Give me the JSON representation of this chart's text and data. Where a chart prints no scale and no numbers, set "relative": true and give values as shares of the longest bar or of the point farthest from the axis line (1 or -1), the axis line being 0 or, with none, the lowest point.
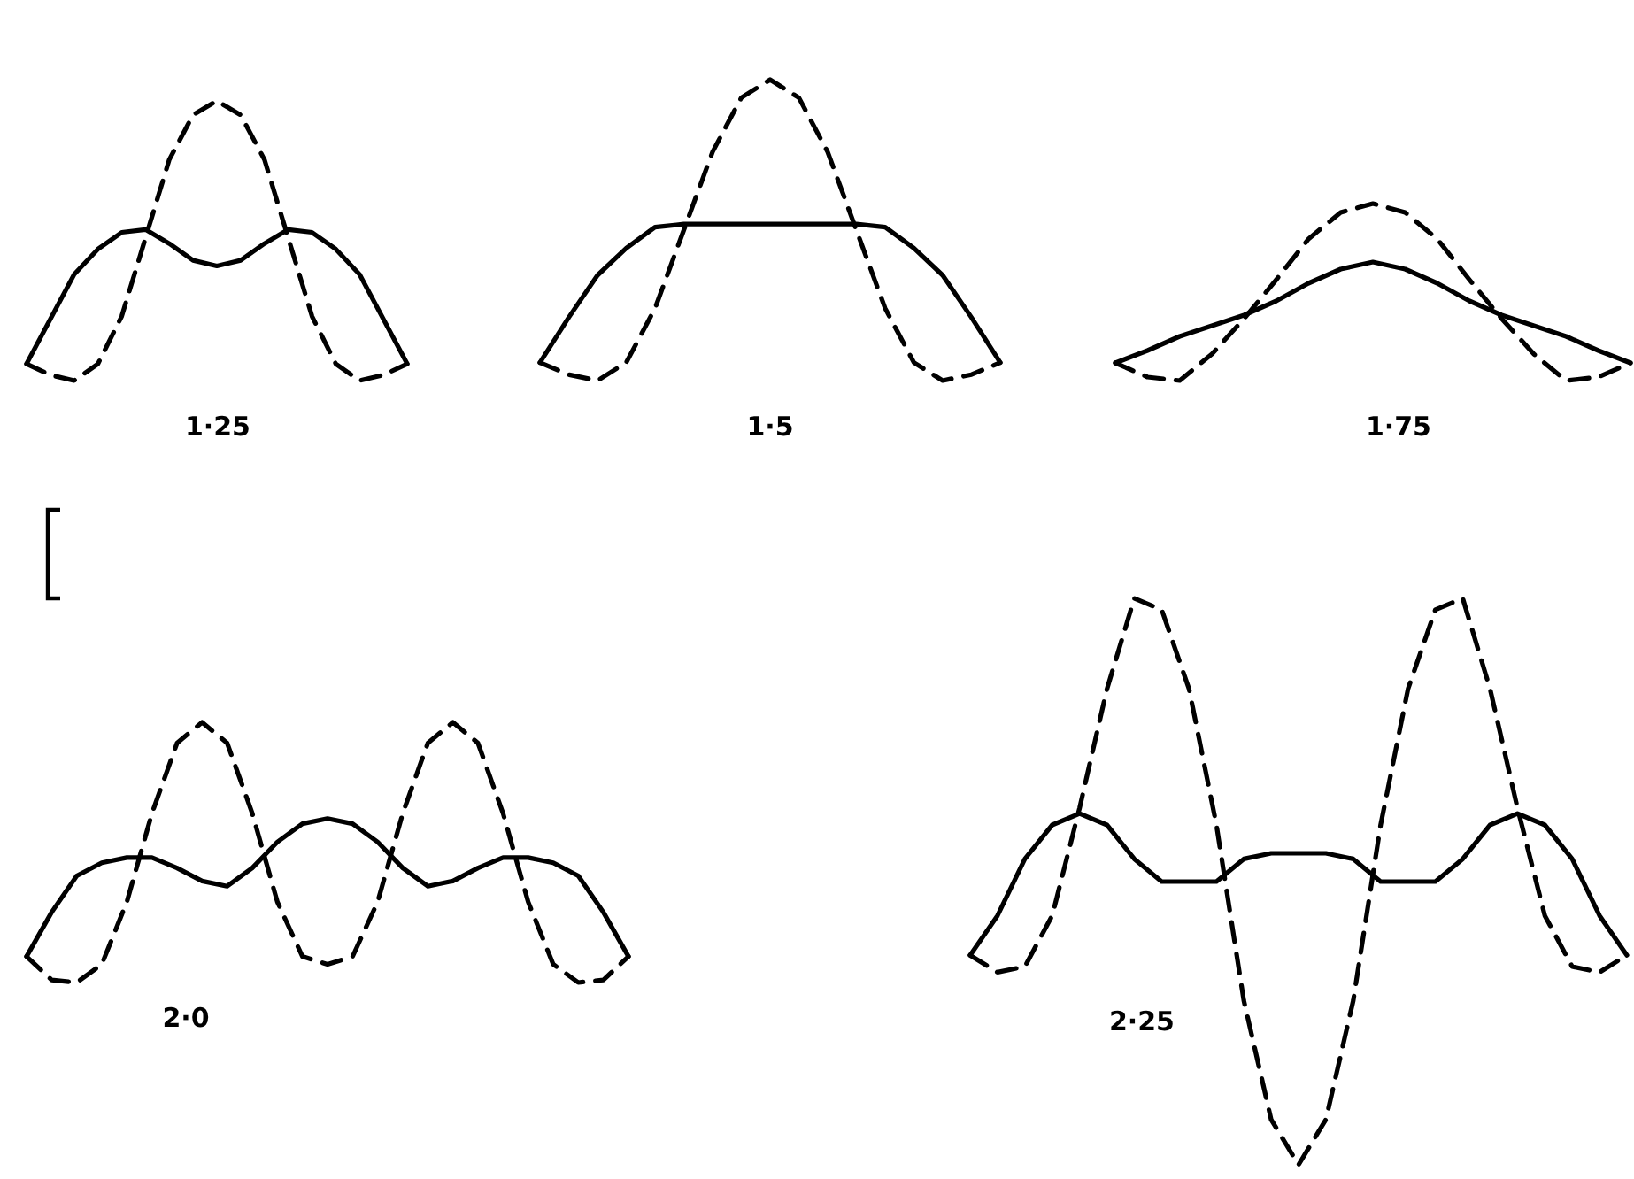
{
  "chart_data": [
    {
      "type": "line",
      "relative": true,
      "title": "1·25",
      "categories": [
        null,
        null,
        null,
        null,
        null,
        null,
        null,
        null,
        null,
        null,
        null,
        null,
        null,
        null,
        null,
        null,
        null
      ],
      "series": [
        {
          "color": "#000000",
          "line_style": "dashed",
          "values": [
            0.06,
            0.02,
            0,
            0.06,
            0.23,
            0.51,
            0.79,
            0.95,
            1,
            0.95,
            0.79,
            0.51,
            0.23,
            0.06,
            0,
            0.02,
            0.06
          ]
        },
        {
          "color": "#000000",
          "line_style": "solid",
          "values": [
            0.06,
            0.22,
            0.38,
            0.47,
            0.53,
            0.54,
            0.49,
            0.43,
            0.41,
            0.43,
            0.49,
            0.54,
            0.53,
            0.47,
            0.38,
            0.22,
            0.06
          ]
        }
      ]
    },
    {
      "type": "line",
      "relative": true,
      "title": "1·5",
      "categories": [
        null,
        null,
        null,
        null,
        null,
        null,
        null,
        null,
        null,
        null,
        null,
        null,
        null,
        null,
        null,
        null,
        null
      ],
      "series": [
        {
          "color": "#000000",
          "line_style": "dashed",
          "values": [
            0.06,
            0.02,
            0,
            0.06,
            0.24,
            0.5,
            0.76,
            0.94,
            1,
            0.94,
            0.76,
            0.5,
            0.24,
            0.06,
            0,
            0.02,
            0.06
          ]
        },
        {
          "color": "#000000",
          "line_style": "solid",
          "values": [
            0.06,
            0.21,
            0.35,
            0.44,
            0.51,
            0.52,
            0.52,
            0.52,
            0.52,
            0.52,
            0.52,
            0.52,
            0.51,
            0.44,
            0.35,
            0.21,
            0.06
          ]
        }
      ]
    },
    {
      "type": "line",
      "relative": true,
      "title": "1·75",
      "categories": [
        null,
        null,
        null,
        null,
        null,
        null,
        null,
        null,
        null,
        null,
        null,
        null,
        null,
        null,
        null,
        null,
        null
      ],
      "series": [
        {
          "color": "#000000",
          "line_style": "dashed",
          "values": [
            0.1,
            0.02,
            0,
            0.15,
            0.35,
            0.57,
            0.8,
            0.95,
            1,
            0.95,
            0.8,
            0.57,
            0.35,
            0.15,
            0,
            0.02,
            0.1
          ]
        },
        {
          "color": "#000000",
          "line_style": "solid",
          "values": [
            0.1,
            0.17,
            0.25,
            0.31,
            0.37,
            0.45,
            0.55,
            0.63,
            0.67,
            0.63,
            0.55,
            0.45,
            0.37,
            0.31,
            0.25,
            0.17,
            0.1
          ]
        }
      ]
    },
    {
      "type": "line",
      "relative": true,
      "title": "2·0",
      "categories": [
        null,
        null,
        null,
        null,
        null,
        null,
        null,
        null,
        null,
        null,
        null,
        null,
        null,
        null,
        null,
        null,
        null,
        null,
        null,
        null,
        null,
        null,
        null,
        null,
        null
      ],
      "series": [
        {
          "color": "#000000",
          "line_style": "dashed",
          "values": [
            0.1,
            0.01,
            0,
            0.07,
            0.31,
            0.65,
            0.92,
            1,
            0.92,
            0.65,
            0.31,
            0.1,
            0.07,
            0.1,
            0.31,
            0.65,
            0.92,
            1,
            0.92,
            0.65,
            0.31,
            0.07,
            0,
            0.01,
            0.1
          ]
        },
        {
          "color": "#000000",
          "line_style": "solid",
          "values": [
            0.1,
            0.27,
            0.41,
            0.46,
            0.48,
            0.48,
            0.44,
            0.39,
            0.37,
            0.44,
            0.54,
            0.61,
            0.63,
            0.61,
            0.54,
            0.44,
            0.37,
            0.39,
            0.44,
            0.48,
            0.48,
            0.46,
            0.41,
            0.27,
            0.1
          ]
        }
      ]
    },
    {
      "type": "line",
      "relative": true,
      "title": "2·25",
      "categories": [
        null,
        null,
        null,
        null,
        null,
        null,
        null,
        null,
        null,
        null,
        null,
        null,
        null,
        null,
        null,
        null,
        null,
        null,
        null,
        null,
        null,
        null,
        null,
        null,
        null
      ],
      "series": [
        {
          "color": "#000000",
          "line_style": "dashed",
          "values": [
            0.37,
            0.34,
            0.35,
            0.44,
            0.63,
            0.84,
            1,
            0.98,
            0.84,
            0.6,
            0.29,
            0.08,
            0,
            0.08,
            0.29,
            0.6,
            0.84,
            0.98,
            1,
            0.84,
            0.63,
            0.44,
            0.35,
            0.34,
            0.37
          ]
        },
        {
          "color": "#000000",
          "line_style": "solid",
          "values": [
            0.37,
            0.44,
            0.54,
            0.6,
            0.62,
            0.6,
            0.54,
            0.5,
            0.5,
            0.5,
            0.54,
            0.55,
            0.55,
            0.55,
            0.54,
            0.5,
            0.5,
            0.5,
            0.54,
            0.6,
            0.62,
            0.6,
            0.54,
            0.44,
            0.37
          ]
        }
      ]
    }
  ]
}
